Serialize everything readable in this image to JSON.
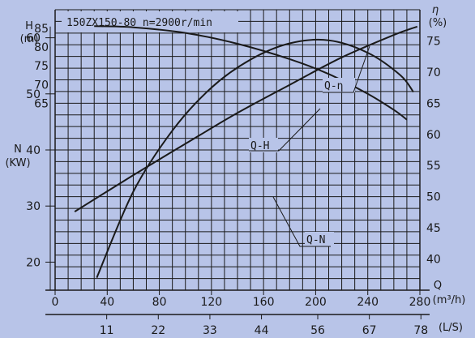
{
  "chart_data": {
    "type": "line",
    "title": "150ZX150-80 n=2900r/min",
    "x_axis": {
      "label_q": "Q",
      "unit_m3h": "(m³/h)",
      "range_m3h": [
        0,
        280
      ],
      "ticks_m3h": [
        "0",
        "40",
        "80",
        "120",
        "160",
        "200",
        "240",
        "280"
      ],
      "unit_ls": "(L/S)",
      "ticks_ls": [
        "11",
        "22",
        "33",
        "44",
        "56",
        "67",
        "78"
      ]
    },
    "y_head": {
      "label": "H",
      "unit": "(m)",
      "range": [
        15,
        90
      ],
      "ticks": [
        "65",
        "70",
        "75",
        "80",
        "85"
      ]
    },
    "y_power": {
      "label": "N",
      "unit": "(KW)",
      "range": [
        15,
        65
      ],
      "ticks": [
        "20",
        "30",
        "40",
        "50",
        "60"
      ]
    },
    "y_eff": {
      "label": "η",
      "unit": "(%)",
      "range": [
        35,
        80
      ],
      "ticks": [
        "40",
        "45",
        "50",
        "55",
        "60",
        "65",
        "70",
        "75"
      ]
    },
    "series": [
      {
        "name": "Q-H",
        "axis": "head",
        "x": [
          30,
          60,
          100,
          140,
          180,
          210,
          240,
          260,
          270
        ],
        "y": [
          85.6,
          85.3,
          83.8,
          80.9,
          76.8,
          72.8,
          67.5,
          63.2,
          60.6
        ]
      },
      {
        "name": "Q-η",
        "axis": "eff",
        "x": [
          32,
          60,
          90,
          120,
          150,
          180,
          210,
          240,
          265,
          275
        ],
        "y": [
          37.0,
          50.8,
          60.6,
          67.5,
          72.0,
          74.6,
          75.1,
          73.1,
          69.5,
          66.8
        ]
      },
      {
        "name": "Q-N",
        "axis": "power",
        "x": [
          15,
          60,
          100,
          140,
          180,
          220,
          260,
          278
        ],
        "y": [
          29.0,
          35.5,
          41.1,
          46.6,
          51.6,
          56.5,
          60.5,
          62.0
        ]
      }
    ],
    "grid": true
  }
}
